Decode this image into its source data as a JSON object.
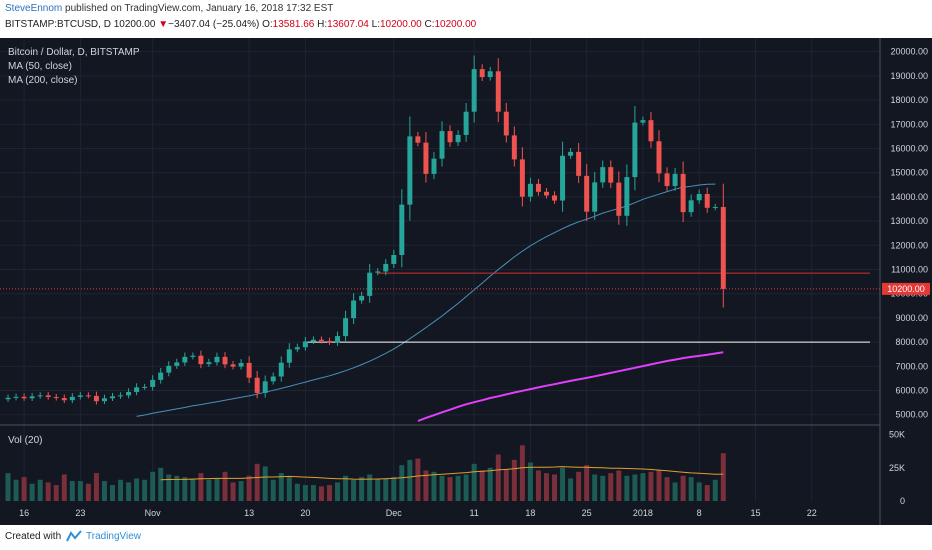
{
  "header": {
    "author": "SteveEnnom",
    "published_text": "published on TradingView.com, January 16, 2018 17:32 EST",
    "symbol": "BITSTAMP:BTCUSD, D",
    "last_price": "10200.00",
    "change_arrow": "▼",
    "change": "−3407.04 (−25.04%)",
    "open_label": "O:",
    "open": "13581.66",
    "high_label": "H:",
    "high": "13607.04",
    "low_label": "L:",
    "low": "10200.00",
    "close_label": "C:",
    "close": "10200.00"
  },
  "legend": {
    "title": "Bitcoin / Dollar, D, BITSTAMP",
    "ma50": "MA (50, close)",
    "ma200": "MA (200, close)",
    "vol": "Vol (20)"
  },
  "footer": {
    "created_with": "Created with",
    "brand": "TradingView"
  },
  "colors": {
    "background": "#131722",
    "up": "#26a69a",
    "down": "#ef5350",
    "ma50": "#4a90b8",
    "ma200": "#e040fb",
    "hline_red": "#d32f2f",
    "hline_white": "#ffffff",
    "price_badge": "#e53935",
    "vol_ma": "#e0a030"
  },
  "chart_data": {
    "type": "candlestick",
    "title": "Bitcoin / Dollar, D, BITSTAMP",
    "ylim": [
      4700,
      20400
    ],
    "yticks": [
      5000,
      6000,
      7000,
      8000,
      9000,
      10000,
      11000,
      12000,
      13000,
      14000,
      15000,
      16000,
      17000,
      18000,
      19000,
      20000
    ],
    "ytick_labels": [
      "5000.00",
      "6000.00",
      "7000.00",
      "8000.00",
      "9000.00",
      "10000.00",
      "11000.00",
      "12000.00",
      "13000.00",
      "14000.00",
      "15000.00",
      "16000.00",
      "17000.00",
      "18000.00",
      "19000.00",
      "20000.00"
    ],
    "x_labels": [
      {
        "label": "16",
        "index": 2
      },
      {
        "label": "23",
        "index": 9
      },
      {
        "label": "Nov",
        "index": 18
      },
      {
        "label": "13",
        "index": 30
      },
      {
        "label": "20",
        "index": 37
      },
      {
        "label": "Dec",
        "index": 48
      },
      {
        "label": "11",
        "index": 58
      },
      {
        "label": "18",
        "index": 65
      },
      {
        "label": "25",
        "index": 72
      },
      {
        "label": "2018",
        "index": 79
      },
      {
        "label": "8",
        "index": 86
      },
      {
        "label": "15",
        "index": 93
      },
      {
        "label": "22",
        "index": 100
      }
    ],
    "x_domain": [
      -0.5,
      108
    ],
    "closes": [
      5700,
      5740,
      5680,
      5760,
      5800,
      5730,
      5690,
      5600,
      5740,
      5800,
      5780,
      5560,
      5680,
      5760,
      5800,
      5940,
      6130,
      6150,
      6440,
      6740,
      7020,
      7160,
      7390,
      7440,
      7090,
      7170,
      7390,
      7080,
      6990,
      7140,
      6530,
      5900,
      6380,
      6580,
      7150,
      7700,
      7790,
      8030,
      8100,
      8050,
      7990,
      8250,
      8990,
      9720,
      9910,
      10870,
      10920,
      11230,
      11600,
      13680,
      16500,
      16240,
      14950,
      15580,
      16720,
      16260,
      16560,
      17520,
      19280,
      18950,
      19190,
      17520,
      16540,
      15550,
      14010,
      14540,
      14210,
      14060,
      13850,
      15700,
      15860,
      14870,
      13390,
      14600,
      15230,
      14590,
      13220,
      14820,
      17070,
      17170,
      16300,
      14970,
      14450,
      14950,
      13370,
      13860,
      14120,
      13550,
      13581.66,
      10200
    ],
    "ma50": [
      null,
      null,
      null,
      null,
      null,
      null,
      null,
      null,
      null,
      null,
      null,
      null,
      null,
      null,
      null,
      null,
      4930,
      4990,
      5060,
      5120,
      5180,
      5240,
      5300,
      5370,
      5420,
      5480,
      5540,
      5600,
      5660,
      5720,
      5780,
      5850,
      5930,
      6010,
      6090,
      6170,
      6260,
      6350,
      6440,
      6520,
      6610,
      6710,
      6820,
      6940,
      7070,
      7210,
      7370,
      7540,
      7720,
      7920,
      8140,
      8370,
      8600,
      8840,
      9080,
      9340,
      9600,
      9880,
      10160,
      10440,
      10730,
      11000,
      11260,
      11520,
      11760,
      11980,
      12180,
      12360,
      12520,
      12690,
      12840,
      12970,
      13080,
      13200,
      13330,
      13430,
      13520,
      13630,
      13760,
      13900,
      14010,
      14110,
      14220,
      14320,
      14400,
      14440,
      14490,
      14520,
      14530,
      null
    ],
    "ma200": [
      null,
      null,
      null,
      null,
      null,
      null,
      null,
      null,
      null,
      null,
      null,
      null,
      null,
      null,
      null,
      null,
      null,
      null,
      null,
      null,
      null,
      null,
      null,
      null,
      null,
      null,
      null,
      null,
      null,
      null,
      null,
      null,
      null,
      null,
      null,
      null,
      null,
      null,
      null,
      null,
      null,
      null,
      null,
      null,
      null,
      null,
      null,
      null,
      null,
      null,
      null,
      4740,
      4870,
      4980,
      5100,
      5210,
      5330,
      5430,
      5520,
      5600,
      5690,
      5760,
      5840,
      5920,
      5990,
      6060,
      6130,
      6200,
      6260,
      6330,
      6400,
      6460,
      6520,
      6590,
      6660,
      6730,
      6800,
      6870,
      6940,
      7010,
      7080,
      7150,
      7220,
      7280,
      7340,
      7390,
      7430,
      7480,
      7530,
      7580
    ],
    "volume": {
      "ylim": [
        0,
        55000
      ],
      "yticks": [
        0,
        25000,
        50000
      ],
      "ytick_labels": [
        "0",
        "25K",
        "50K"
      ],
      "values": [
        21000,
        16000,
        18000,
        13000,
        16000,
        14000,
        12000,
        20000,
        15000,
        15000,
        13000,
        21000,
        15000,
        12000,
        16000,
        14000,
        17000,
        16000,
        22000,
        25000,
        20000,
        19000,
        18000,
        17000,
        21000,
        16000,
        17000,
        22000,
        14000,
        15000,
        19000,
        28000,
        26000,
        16000,
        21000,
        18000,
        13000,
        12000,
        12000,
        11000,
        12000,
        14000,
        19000,
        16000,
        18000,
        20000,
        17000,
        17000,
        18000,
        27000,
        31000,
        32000,
        23000,
        22000,
        19000,
        18000,
        19000,
        20000,
        28000,
        23000,
        25000,
        35000,
        24000,
        31000,
        42000,
        29000,
        23000,
        21000,
        20000,
        25000,
        17000,
        22000,
        27000,
        20000,
        19000,
        21000,
        23000,
        19000,
        20000,
        21000,
        22000,
        23000,
        18000,
        14000,
        19000,
        18000,
        14000,
        12000,
        16000,
        36000
      ],
      "ma20": [
        null,
        null,
        null,
        null,
        null,
        null,
        null,
        null,
        null,
        null,
        null,
        null,
        null,
        null,
        null,
        null,
        null,
        null,
        null,
        16000,
        16200,
        16300,
        16300,
        16500,
        16800,
        16900,
        17000,
        17000,
        17000,
        17000,
        17300,
        17700,
        18100,
        18100,
        18300,
        18500,
        18300,
        18000,
        17800,
        17400,
        17000,
        16700,
        16700,
        16500,
        16400,
        16500,
        16600,
        16800,
        17100,
        17500,
        18100,
        18800,
        19300,
        19800,
        20200,
        20600,
        21000,
        21400,
        22000,
        22400,
        22800,
        23400,
        23800,
        24300,
        25100,
        25500,
        25500,
        25500,
        25600,
        25900,
        25600,
        25400,
        25400,
        25200,
        25000,
        24700,
        24600,
        24500,
        24300,
        24100,
        23700,
        23300,
        22800,
        22200,
        21700,
        21200,
        20900,
        20500,
        20200,
        20300
      ]
    },
    "hlines": [
      {
        "value": 10850,
        "from_index": 46,
        "color_key": "hline_red"
      },
      {
        "value": 8000,
        "from_index": 37,
        "color_key": "hline_white"
      }
    ],
    "last_price_label": "10200.00",
    "last_price": 10200
  }
}
